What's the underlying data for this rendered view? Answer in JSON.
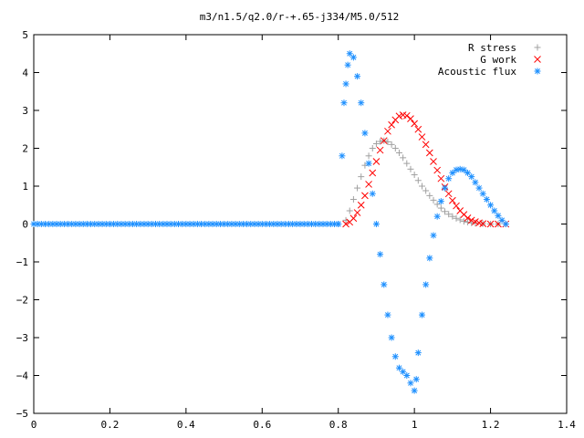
{
  "chart_data": {
    "type": "scatter",
    "title": "m3/n1.5/q2.0/r-+.65-j334/M5.0/512",
    "xlabel": "",
    "ylabel": "",
    "xlim": [
      0,
      1.4
    ],
    "ylim": [
      -5,
      5
    ],
    "xticks": [
      "0",
      "0.2",
      "0.4",
      "0.6",
      "0.8",
      "1",
      "1.2",
      "1.4"
    ],
    "yticks": [
      "5",
      "4",
      "3",
      "2",
      "1",
      "0",
      "−1",
      "−2",
      "−3",
      "−4",
      "−5"
    ],
    "grid": false,
    "legend_position": "top-right",
    "series": [
      {
        "name": "R stress",
        "marker": "plus",
        "color": "#a0a0a0",
        "points": [
          [
            0.82,
            0.1
          ],
          [
            0.83,
            0.35
          ],
          [
            0.84,
            0.65
          ],
          [
            0.85,
            0.95
          ],
          [
            0.86,
            1.25
          ],
          [
            0.87,
            1.55
          ],
          [
            0.88,
            1.8
          ],
          [
            0.89,
            2.0
          ],
          [
            0.9,
            2.12
          ],
          [
            0.91,
            2.18
          ],
          [
            0.92,
            2.2
          ],
          [
            0.93,
            2.17
          ],
          [
            0.94,
            2.1
          ],
          [
            0.95,
            2.0
          ],
          [
            0.96,
            1.88
          ],
          [
            0.97,
            1.75
          ],
          [
            0.98,
            1.6
          ],
          [
            0.99,
            1.45
          ],
          [
            1.0,
            1.3
          ],
          [
            1.01,
            1.15
          ],
          [
            1.02,
            1.0
          ],
          [
            1.03,
            0.88
          ],
          [
            1.04,
            0.75
          ],
          [
            1.05,
            0.63
          ],
          [
            1.06,
            0.52
          ],
          [
            1.07,
            0.42
          ],
          [
            1.08,
            0.33
          ],
          [
            1.09,
            0.26
          ],
          [
            1.1,
            0.2
          ],
          [
            1.11,
            0.15
          ],
          [
            1.12,
            0.11
          ],
          [
            1.13,
            0.07
          ],
          [
            1.14,
            0.05
          ],
          [
            1.15,
            0.03
          ],
          [
            1.16,
            0.02
          ],
          [
            1.18,
            0.01
          ],
          [
            1.2,
            0.0
          ],
          [
            1.22,
            0.0
          ],
          [
            1.24,
            0.0
          ]
        ]
      },
      {
        "name": "G work",
        "marker": "cross",
        "color": "#ff0000",
        "points": [
          [
            0.82,
            0.0
          ],
          [
            0.83,
            0.05
          ],
          [
            0.84,
            0.15
          ],
          [
            0.85,
            0.3
          ],
          [
            0.86,
            0.5
          ],
          [
            0.87,
            0.75
          ],
          [
            0.88,
            1.05
          ],
          [
            0.89,
            1.35
          ],
          [
            0.9,
            1.65
          ],
          [
            0.91,
            1.95
          ],
          [
            0.92,
            2.2
          ],
          [
            0.93,
            2.45
          ],
          [
            0.94,
            2.62
          ],
          [
            0.95,
            2.75
          ],
          [
            0.96,
            2.85
          ],
          [
            0.97,
            2.88
          ],
          [
            0.98,
            2.86
          ],
          [
            0.99,
            2.78
          ],
          [
            1.0,
            2.65
          ],
          [
            1.01,
            2.5
          ],
          [
            1.02,
            2.3
          ],
          [
            1.03,
            2.1
          ],
          [
            1.04,
            1.88
          ],
          [
            1.05,
            1.65
          ],
          [
            1.06,
            1.42
          ],
          [
            1.07,
            1.2
          ],
          [
            1.08,
            0.98
          ],
          [
            1.09,
            0.8
          ],
          [
            1.1,
            0.62
          ],
          [
            1.11,
            0.48
          ],
          [
            1.12,
            0.35
          ],
          [
            1.13,
            0.25
          ],
          [
            1.14,
            0.16
          ],
          [
            1.15,
            0.1
          ],
          [
            1.16,
            0.06
          ],
          [
            1.17,
            0.03
          ],
          [
            1.18,
            0.01
          ],
          [
            1.2,
            0.0
          ],
          [
            1.22,
            0.0
          ],
          [
            1.24,
            0.0
          ]
        ]
      },
      {
        "name": "Acoustic flux",
        "marker": "star",
        "color": "#1e90ff",
        "points": [
          [
            0.8,
            0.0
          ],
          [
            0.81,
            1.8
          ],
          [
            0.815,
            3.2
          ],
          [
            0.82,
            3.7
          ],
          [
            0.825,
            4.2
          ],
          [
            0.83,
            4.5
          ],
          [
            0.84,
            4.4
          ],
          [
            0.85,
            3.9
          ],
          [
            0.86,
            3.2
          ],
          [
            0.87,
            2.4
          ],
          [
            0.88,
            1.6
          ],
          [
            0.89,
            0.8
          ],
          [
            0.9,
            0.0
          ],
          [
            0.91,
            -0.8
          ],
          [
            0.92,
            -1.6
          ],
          [
            0.93,
            -2.4
          ],
          [
            0.94,
            -3.0
          ],
          [
            0.95,
            -3.5
          ],
          [
            0.96,
            -3.8
          ],
          [
            0.97,
            -3.9
          ],
          [
            0.98,
            -4.0
          ],
          [
            0.99,
            -4.2
          ],
          [
            1.0,
            -4.4
          ],
          [
            1.005,
            -4.1
          ],
          [
            1.01,
            -3.4
          ],
          [
            1.02,
            -2.4
          ],
          [
            1.03,
            -1.6
          ],
          [
            1.04,
            -0.9
          ],
          [
            1.05,
            -0.3
          ],
          [
            1.06,
            0.2
          ],
          [
            1.07,
            0.6
          ],
          [
            1.08,
            0.95
          ],
          [
            1.09,
            1.2
          ],
          [
            1.1,
            1.35
          ],
          [
            1.11,
            1.43
          ],
          [
            1.12,
            1.45
          ],
          [
            1.13,
            1.43
          ],
          [
            1.14,
            1.35
          ],
          [
            1.15,
            1.25
          ],
          [
            1.16,
            1.1
          ],
          [
            1.17,
            0.95
          ],
          [
            1.18,
            0.8
          ],
          [
            1.19,
            0.65
          ],
          [
            1.2,
            0.5
          ],
          [
            1.21,
            0.35
          ],
          [
            1.22,
            0.22
          ],
          [
            1.23,
            0.1
          ],
          [
            1.24,
            0.0
          ]
        ]
      }
    ]
  }
}
